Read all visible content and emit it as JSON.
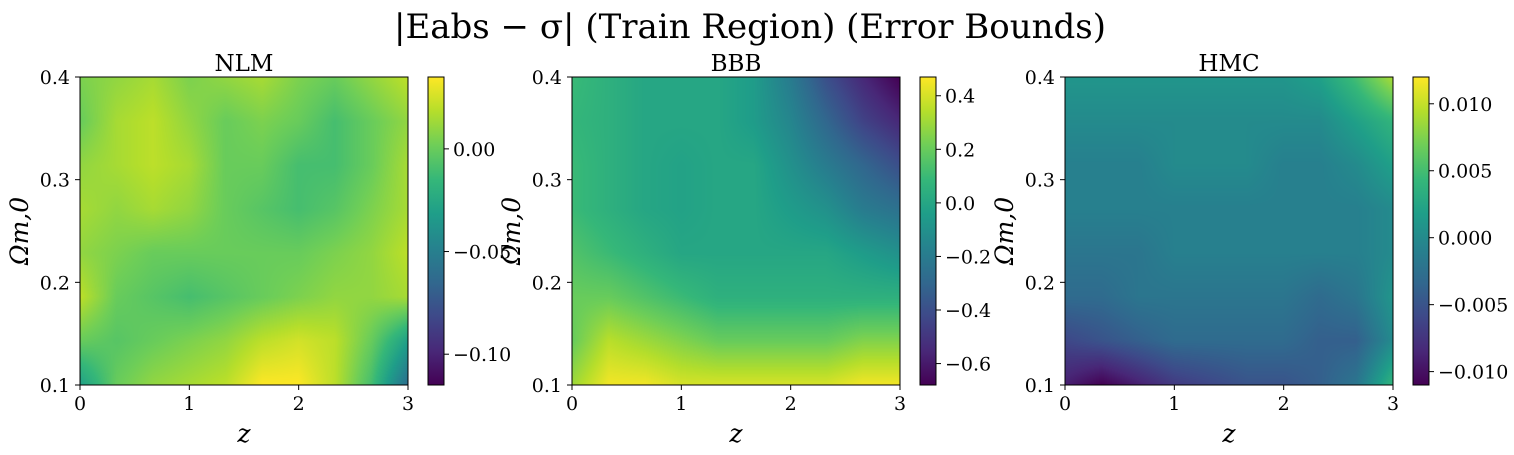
{
  "figure": {
    "title": "|Eabs − σ| (Train Region) (Error Bounds)"
  },
  "colors": {
    "colormap": "viridis",
    "frame": "#000000"
  },
  "chart_data": [
    {
      "type": "heatmap",
      "title": "NLM",
      "xlabel": "z",
      "ylabel": "Ωm,0",
      "xlim": [
        0,
        3
      ],
      "ylim": [
        0.1,
        0.4
      ],
      "x_ticks": [
        "0",
        "1",
        "2",
        "3"
      ],
      "y_ticks": [
        "0.1",
        "0.2",
        "0.3",
        "0.4"
      ],
      "colorbar": {
        "range": [
          -0.115,
          0.035
        ],
        "ticks": [
          -0.1,
          -0.05,
          0.0
        ],
        "tick_labels": [
          "−0.10",
          "−0.05",
          "0.00"
        ]
      },
      "grid": false,
      "values": [
        [
          0.005,
          0.01,
          0.015,
          0.005,
          0.01,
          0.015,
          0.005,
          0.0,
          0.01,
          0.02
        ],
        [
          0.0,
          0.015,
          0.02,
          0.01,
          0.0,
          0.005,
          0.0,
          -0.01,
          0.0,
          0.01
        ],
        [
          0.01,
          0.015,
          0.02,
          0.015,
          0.0,
          0.0,
          -0.01,
          -0.01,
          0.0,
          0.015
        ],
        [
          0.015,
          0.01,
          0.015,
          0.01,
          0.0,
          -0.005,
          -0.01,
          -0.005,
          0.005,
          0.015
        ],
        [
          0.01,
          0.005,
          0.0,
          0.0,
          0.0,
          0.0,
          0.0,
          0.005,
          0.01,
          0.02
        ],
        [
          0.02,
          0.0,
          -0.005,
          -0.01,
          -0.005,
          0.0,
          0.005,
          0.01,
          0.01,
          0.015
        ],
        [
          0.0,
          -0.005,
          0.0,
          0.005,
          0.01,
          0.02,
          0.025,
          0.02,
          0.0,
          -0.03
        ],
        [
          -0.03,
          0.0,
          0.01,
          0.015,
          0.02,
          0.035,
          0.035,
          0.02,
          -0.01,
          -0.06
        ]
      ]
    },
    {
      "type": "heatmap",
      "title": "BBB",
      "xlabel": "z",
      "ylabel": "Ωm,0",
      "xlim": [
        0,
        3
      ],
      "ylim": [
        0.1,
        0.4
      ],
      "x_ticks": [
        "0",
        "1",
        "2",
        "3"
      ],
      "y_ticks": [
        "0.1",
        "0.2",
        "0.3",
        "0.4"
      ],
      "colorbar": {
        "range": [
          -0.68,
          0.47
        ],
        "ticks": [
          -0.6,
          -0.4,
          -0.2,
          0.0,
          0.2,
          0.4
        ],
        "tick_labels": [
          "−0.6",
          "−0.4",
          "−0.2",
          "0.0",
          "0.2",
          "0.4"
        ]
      },
      "grid": false,
      "values": [
        [
          0.1,
          0.05,
          0.0,
          0.0,
          0.0,
          -0.05,
          -0.2,
          -0.4,
          -0.55,
          -0.68
        ],
        [
          0.08,
          0.05,
          0.0,
          0.0,
          0.0,
          -0.05,
          -0.15,
          -0.3,
          -0.45,
          -0.55
        ],
        [
          0.1,
          0.05,
          0.0,
          -0.02,
          0.0,
          0.0,
          -0.1,
          -0.2,
          -0.3,
          -0.4
        ],
        [
          0.1,
          0.05,
          0.0,
          -0.02,
          0.0,
          0.0,
          -0.05,
          -0.1,
          -0.2,
          -0.25
        ],
        [
          0.15,
          0.1,
          0.05,
          0.0,
          0.0,
          0.0,
          0.0,
          0.0,
          -0.05,
          -0.1
        ],
        [
          0.2,
          0.2,
          0.15,
          0.1,
          0.05,
          0.05,
          0.05,
          0.05,
          0.05,
          0.05
        ],
        [
          0.2,
          0.35,
          0.3,
          0.25,
          0.2,
          0.2,
          0.2,
          0.2,
          0.25,
          0.25
        ],
        [
          0.3,
          0.45,
          0.45,
          0.4,
          0.4,
          0.4,
          0.4,
          0.4,
          0.45,
          0.45
        ]
      ]
    },
    {
      "type": "heatmap",
      "title": "HMC",
      "xlabel": "z",
      "ylabel": "Ωm,0",
      "xlim": [
        0,
        3
      ],
      "ylim": [
        0.1,
        0.4
      ],
      "x_ticks": [
        "0",
        "1",
        "2",
        "3"
      ],
      "y_ticks": [
        "0.1",
        "0.2",
        "0.3",
        "0.4"
      ],
      "colorbar": {
        "range": [
          -0.011,
          0.012
        ],
        "ticks": [
          -0.01,
          -0.005,
          0.0,
          0.005,
          0.01
        ],
        "tick_labels": [
          "−0.010",
          "−0.005",
          "0.000",
          "0.005",
          "0.010"
        ]
      },
      "grid": false,
      "values": [
        [
          0.001,
          0.001,
          0.001,
          0.001,
          0.001,
          0.001,
          0.001,
          0.002,
          0.005,
          0.009
        ],
        [
          0.0,
          0.0,
          0.0,
          0.0,
          0.0,
          0.0,
          0.0,
          0.0,
          0.002,
          0.004
        ],
        [
          -0.001,
          -0.001,
          -0.001,
          0.0,
          0.0,
          0.0,
          -0.001,
          -0.001,
          0.0,
          0.002
        ],
        [
          -0.001,
          -0.001,
          -0.001,
          -0.001,
          -0.001,
          -0.001,
          -0.001,
          -0.001,
          -0.001,
          0.0
        ],
        [
          -0.002,
          -0.002,
          -0.002,
          -0.001,
          -0.001,
          -0.001,
          -0.001,
          -0.001,
          -0.001,
          0.0
        ],
        [
          -0.003,
          -0.003,
          -0.002,
          -0.002,
          -0.002,
          -0.002,
          -0.002,
          -0.003,
          -0.002,
          0.001
        ],
        [
          -0.006,
          -0.005,
          -0.004,
          -0.003,
          -0.003,
          -0.003,
          -0.003,
          -0.004,
          -0.004,
          0.0
        ],
        [
          -0.009,
          -0.011,
          -0.009,
          -0.007,
          -0.006,
          -0.005,
          -0.005,
          -0.004,
          -0.002,
          0.004
        ]
      ]
    }
  ]
}
